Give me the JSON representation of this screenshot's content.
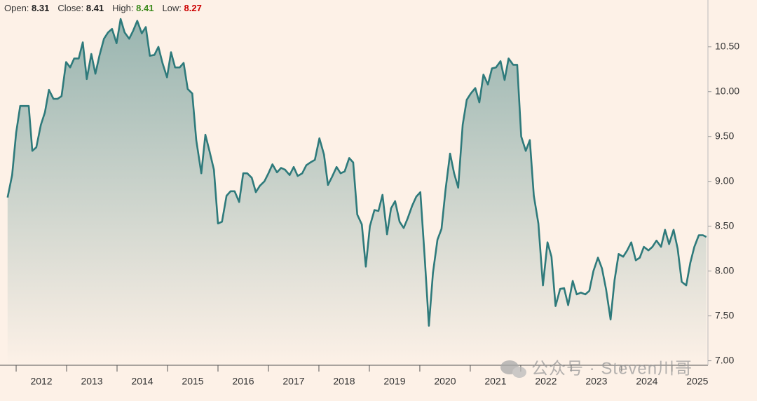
{
  "header": {
    "items": [
      {
        "label": "Open:",
        "value": 8.31
      },
      {
        "label": "Close:",
        "value": 8.41
      },
      {
        "label": "High:",
        "value": 8.41
      },
      {
        "label": "Low:",
        "value": 8.27
      }
    ]
  },
  "watermark": "公众号 · Steven川哥",
  "chart_data": {
    "type": "area",
    "color": "#2e7a7b",
    "x": [
      2011.83,
      2011.92,
      2012.0,
      2012.08,
      2012.17,
      2012.25,
      2012.32,
      2012.4,
      2012.49,
      2012.57,
      2012.65,
      2012.74,
      2012.82,
      2012.9,
      2012.99,
      2013.07,
      2013.15,
      2013.24,
      2013.32,
      2013.4,
      2013.49,
      2013.57,
      2013.65,
      2013.74,
      2013.82,
      2013.9,
      2013.99,
      2014.07,
      2014.15,
      2014.24,
      2014.32,
      2014.4,
      2014.49,
      2014.57,
      2014.65,
      2014.74,
      2014.82,
      2014.9,
      2014.99,
      2015.07,
      2015.15,
      2015.24,
      2015.32,
      2015.4,
      2015.49,
      2015.57,
      2015.67,
      2015.75,
      2015.83,
      2015.92,
      2016.0,
      2016.08,
      2016.17,
      2016.25,
      2016.33,
      2016.42,
      2016.5,
      2016.58,
      2016.67,
      2016.75,
      2016.83,
      2016.92,
      2017.0,
      2017.08,
      2017.17,
      2017.25,
      2017.33,
      2017.42,
      2017.5,
      2017.58,
      2017.67,
      2017.75,
      2017.83,
      2017.92,
      2018.01,
      2018.1,
      2018.18,
      2018.26,
      2018.35,
      2018.43,
      2018.51,
      2018.6,
      2018.68,
      2018.76,
      2018.85,
      2018.93,
      2019.01,
      2019.1,
      2019.18,
      2019.26,
      2019.35,
      2019.43,
      2019.51,
      2019.6,
      2019.68,
      2019.76,
      2019.85,
      2019.93,
      2020.01,
      2020.1,
      2020.18,
      2020.26,
      2020.35,
      2020.43,
      2020.51,
      2020.6,
      2020.68,
      2020.76,
      2020.85,
      2020.93,
      2021.01,
      2021.1,
      2021.18,
      2021.26,
      2021.35,
      2021.43,
      2021.51,
      2021.6,
      2021.68,
      2021.76,
      2021.85,
      2021.93,
      2022.01,
      2022.1,
      2022.18,
      2022.26,
      2022.35,
      2022.44,
      2022.53,
      2022.61,
      2022.69,
      2022.78,
      2022.86,
      2022.94,
      2023.03,
      2023.11,
      2023.19,
      2023.28,
      2023.36,
      2023.44,
      2023.53,
      2023.61,
      2023.69,
      2023.78,
      2023.86,
      2023.94,
      2024.03,
      2024.11,
      2024.19,
      2024.28,
      2024.36,
      2024.44,
      2024.53,
      2024.61,
      2024.69,
      2024.78,
      2024.86,
      2024.94,
      2025.03,
      2025.11,
      2025.19,
      2025.28,
      2025.36,
      2025.44,
      2025.53,
      2025.61,
      2025.68
    ],
    "values": [
      8.82,
      9.07,
      9.54,
      9.84,
      9.84,
      9.84,
      9.34,
      9.38,
      9.63,
      9.77,
      10.02,
      9.92,
      9.92,
      9.95,
      10.33,
      10.27,
      10.37,
      10.37,
      10.55,
      10.14,
      10.42,
      10.2,
      10.4,
      10.59,
      10.66,
      10.7,
      10.54,
      10.81,
      10.66,
      10.59,
      10.68,
      10.79,
      10.65,
      10.72,
      10.4,
      10.41,
      10.5,
      10.32,
      10.16,
      10.44,
      10.27,
      10.27,
      10.32,
      10.03,
      9.98,
      9.46,
      9.09,
      9.52,
      9.34,
      9.13,
      8.53,
      8.55,
      8.84,
      8.89,
      8.89,
      8.77,
      9.09,
      9.09,
      9.04,
      8.88,
      8.95,
      9.0,
      9.09,
      9.19,
      9.1,
      9.15,
      9.13,
      9.07,
      9.16,
      9.06,
      9.09,
      9.18,
      9.21,
      9.24,
      9.48,
      9.3,
      8.96,
      9.05,
      9.16,
      9.09,
      9.11,
      9.26,
      9.21,
      8.63,
      8.52,
      8.05,
      8.5,
      8.68,
      8.67,
      8.85,
      8.41,
      8.7,
      8.78,
      8.55,
      8.48,
      8.59,
      8.73,
      8.83,
      8.88,
      8.13,
      7.39,
      7.98,
      8.35,
      8.47,
      8.91,
      9.31,
      9.09,
      8.93,
      9.63,
      9.91,
      9.98,
      10.04,
      9.88,
      10.19,
      10.08,
      10.26,
      10.27,
      10.34,
      10.13,
      10.37,
      10.3,
      10.3,
      9.5,
      9.34,
      9.46,
      8.84,
      8.53,
      7.84,
      8.32,
      8.16,
      7.61,
      7.8,
      7.81,
      7.62,
      7.89,
      7.74,
      7.76,
      7.74,
      7.78,
      8.0,
      8.15,
      8.03,
      7.8,
      7.46,
      7.9,
      8.19,
      8.16,
      8.23,
      8.32,
      8.12,
      8.15,
      8.27,
      8.23,
      8.27,
      8.34,
      8.27,
      8.46,
      8.3,
      8.46,
      8.25,
      7.88,
      7.84,
      8.09,
      8.27,
      8.4,
      8.4,
      8.38
    ],
    "xlim": [
      2011.68,
      2025.71
    ],
    "xticks": [
      2012,
      2013,
      2014,
      2015,
      2016,
      2017,
      2018,
      2019,
      2020,
      2021,
      2022,
      2023,
      2024,
      2025
    ],
    "ylim": [
      6.95,
      10.85
    ],
    "yticks": [
      {
        "value": 7,
        "label": "7.00"
      },
      {
        "value": 7.5,
        "label": "7.50"
      },
      {
        "value": 8,
        "label": "8.00"
      },
      {
        "value": 8.5,
        "label": "8.50"
      },
      {
        "value": 9,
        "label": "9.00"
      },
      {
        "value": 9.5,
        "label": "9.50"
      },
      {
        "value": 10,
        "label": "10.00"
      },
      {
        "value": 10.5,
        "label": "10.50"
      }
    ]
  }
}
